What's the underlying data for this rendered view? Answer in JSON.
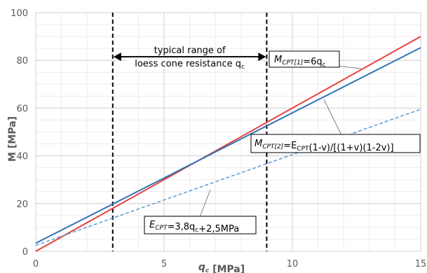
{
  "chart_data": {
    "type": "line",
    "x_range": [
      0,
      15
    ],
    "y_range": [
      0,
      100
    ],
    "x_ticks": [
      0,
      5,
      10,
      15
    ],
    "x_tick_labels": [
      "0",
      "5",
      "10",
      "15"
    ],
    "y_ticks": [
      0,
      20,
      40,
      60,
      80,
      100
    ],
    "y_tick_labels": [
      "0",
      "20",
      "40",
      "60",
      "80",
      "100"
    ],
    "grid": true,
    "xlabel": {
      "main": "q",
      "sub": "c",
      "rest": " [MPa]"
    },
    "ylabel": "M [MPa]",
    "series": [
      {
        "name": "M_CPT[1]=6q_c",
        "color": "#E8413C",
        "style": "solid",
        "x": [
          0,
          15
        ],
        "y": [
          0,
          90
        ]
      },
      {
        "name": "M_CPT[2]=E_CPT(1-v)/[(1+v)(1-2v)]",
        "color": "#2E75B6",
        "style": "solid",
        "x": [
          0,
          15
        ],
        "y": [
          3.4,
          85.3
        ]
      },
      {
        "name": "E_CPT=3,8q_c+2,5MPa",
        "color": "#5B9BD5",
        "style": "dashed",
        "x": [
          0,
          15
        ],
        "y": [
          2.5,
          59.5
        ]
      }
    ],
    "vertical_markers": [
      3,
      9
    ],
    "range_annotation": {
      "line1": "typical range of",
      "line2": "loess cone resistance q",
      "line2_sub": "c",
      "from": 3,
      "to": 9,
      "y": 81.5
    },
    "labels": {
      "m1": {
        "pre": "M",
        "sub": "CPT[1]",
        "post": "=6q",
        "sub2": "c"
      },
      "m2": {
        "pre": "M",
        "sub": "CPT[2]",
        "post": "=E",
        "sub2": "CPT",
        "post2": "(1-v)/[(1+v)(1-2v)]"
      },
      "e": {
        "pre": "E",
        "sub": "CPT",
        "post": "=3,8q",
        "sub2": "c",
        "post2": "+2,5MPa"
      }
    }
  }
}
